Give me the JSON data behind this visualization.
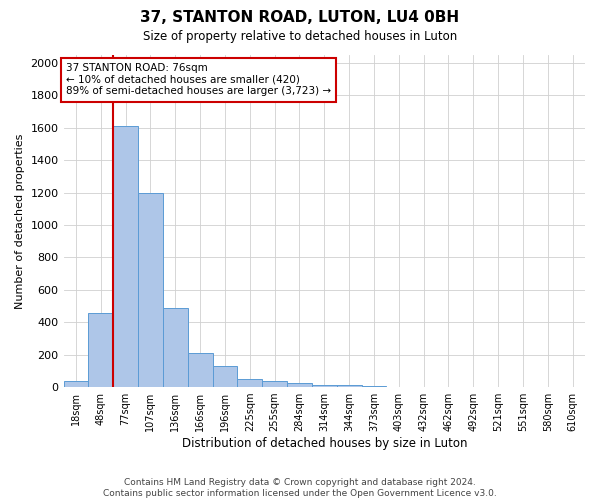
{
  "title": "37, STANTON ROAD, LUTON, LU4 0BH",
  "subtitle": "Size of property relative to detached houses in Luton",
  "xlabel": "Distribution of detached houses by size in Luton",
  "ylabel": "Number of detached properties",
  "categories": [
    "18sqm",
    "48sqm",
    "77sqm",
    "107sqm",
    "136sqm",
    "166sqm",
    "196sqm",
    "225sqm",
    "255sqm",
    "284sqm",
    "314sqm",
    "344sqm",
    "373sqm",
    "403sqm",
    "432sqm",
    "462sqm",
    "492sqm",
    "521sqm",
    "551sqm",
    "580sqm",
    "610sqm"
  ],
  "values": [
    35,
    460,
    1610,
    1200,
    490,
    210,
    130,
    50,
    40,
    25,
    15,
    10,
    5,
    0,
    0,
    0,
    0,
    0,
    0,
    0,
    0
  ],
  "bar_color": "#aec6e8",
  "bar_edge_color": "#5b9bd5",
  "vline_x_idx": 2,
  "vline_color": "#cc0000",
  "annotation_text": "37 STANTON ROAD: 76sqm\n← 10% of detached houses are smaller (420)\n89% of semi-detached houses are larger (3,723) →",
  "annotation_box_color": "#ffffff",
  "annotation_box_edge": "#cc0000",
  "ylim": [
    0,
    2050
  ],
  "yticks": [
    0,
    200,
    400,
    600,
    800,
    1000,
    1200,
    1400,
    1600,
    1800,
    2000
  ],
  "footer": "Contains HM Land Registry data © Crown copyright and database right 2024.\nContains public sector information licensed under the Open Government Licence v3.0.",
  "bg_color": "#ffffff",
  "grid_color": "#d0d0d0",
  "figwidth": 6.0,
  "figheight": 5.0,
  "dpi": 100
}
